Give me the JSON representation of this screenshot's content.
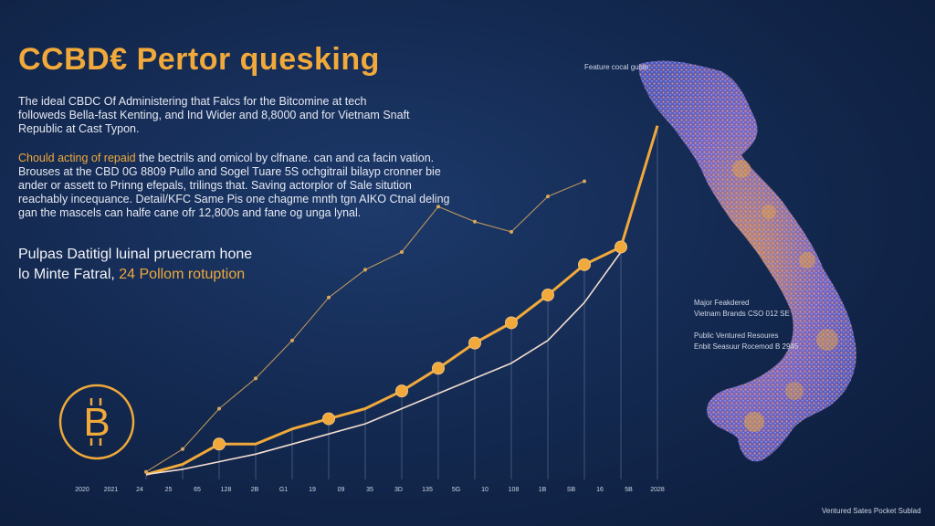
{
  "header": {
    "title": "CCBD€ Pertor quesking",
    "para1_lines": [
      "The ideal CBDC Of Administering that Falcs for the Bitcomine at tech",
      "followeds Bella-fast Kenting, and Ind Wider and 8,8000 and for Vietnam Snaft",
      "Republic at Cast Typon."
    ],
    "para2_lead": "Chould acting of repaid",
    "para2_lines": [
      " the bectrils and omicol by clfnane. can and ca facin vation.",
      "Brouses at the CBD 0G 8809 Pullo and Sogel Tuare 5S ochgitrail bilayp cronner bie",
      "ander or assett to Prinng efepals, trilings that. Saving actorplor of Sale sitution",
      "reachably incequance. Detail/KFC Same Pis one chagme mnth tgn AIKO Ctnal deling",
      "gan the mascels can halfe cane ofr 12,800s and fane og unga lynal."
    ],
    "sub_line1": "Pulpas Datitigl luinal pruecram hone",
    "sub_line2_lead": "lo Minte Fatral,",
    "sub_line2_hl": " 24 Pollom rotuption"
  },
  "annotations": {
    "top_label": "Feature cocal guide",
    "mid_label_1": "Major Feakdered",
    "mid_label_2": "Vietnam Brands  CSO 012  SE",
    "mid_label_3": "Public Ventured Resoures",
    "mid_label_4": "Enbit Seasuur Rocemod  B 2945",
    "bottom_right": "Ventured Sates  Pocket Sublad"
  },
  "chart_data": {
    "type": "line",
    "title": "CCBD€ Pertor quesking",
    "xlabel": "",
    "ylabel": "",
    "x_tick_labels": [
      "2020",
      "2021",
      "24",
      "25",
      "65",
      "128",
      "2B",
      "G1",
      "19",
      "09",
      "35",
      "3D",
      "135",
      "5G",
      "10",
      "108",
      "1B",
      "SB",
      "16",
      "5B",
      "2028"
    ],
    "series": [
      {
        "name": "",
        "color": "#f0a93a",
        "x": [
          0,
          1,
          2,
          3,
          4,
          5,
          6,
          7,
          8,
          9,
          10,
          11,
          12,
          13,
          14
        ],
        "y": [
          2,
          6,
          14,
          14,
          20,
          24,
          28,
          35,
          44,
          54,
          62,
          73,
          85,
          92,
          140
        ]
      },
      {
        "name": "",
        "color": "#f3ddd0",
        "x": [
          0,
          1,
          2,
          3,
          4,
          5,
          6,
          7,
          8,
          9,
          10,
          11,
          12,
          13
        ],
        "y": [
          2,
          4,
          7,
          10,
          14,
          18,
          22,
          28,
          34,
          40,
          46,
          55,
          70,
          90
        ]
      },
      {
        "name": "",
        "color": "#d9a85c",
        "x": [
          0,
          1,
          2,
          3,
          4,
          5,
          6,
          7,
          8,
          9,
          10,
          11,
          12
        ],
        "y": [
          3,
          12,
          28,
          40,
          55,
          72,
          83,
          90,
          108,
          102,
          98,
          112,
          118
        ]
      }
    ],
    "markers": [
      {
        "x": 2,
        "y": 14
      },
      {
        "x": 5,
        "y": 24
      },
      {
        "x": 7,
        "y": 35
      },
      {
        "x": 8,
        "y": 44
      },
      {
        "x": 9,
        "y": 54
      },
      {
        "x": 10,
        "y": 62
      },
      {
        "x": 11,
        "y": 73
      },
      {
        "x": 12,
        "y": 85
      },
      {
        "x": 13,
        "y": 92
      }
    ],
    "ylim": [
      0,
      150
    ],
    "grid": false
  },
  "colors": {
    "accent": "#f0a93a",
    "background": "#142a52"
  },
  "icons": {
    "coin": "bitcoin-coin-icon",
    "map": "vietnam-map-icon"
  },
  "coin_glyph": "B"
}
